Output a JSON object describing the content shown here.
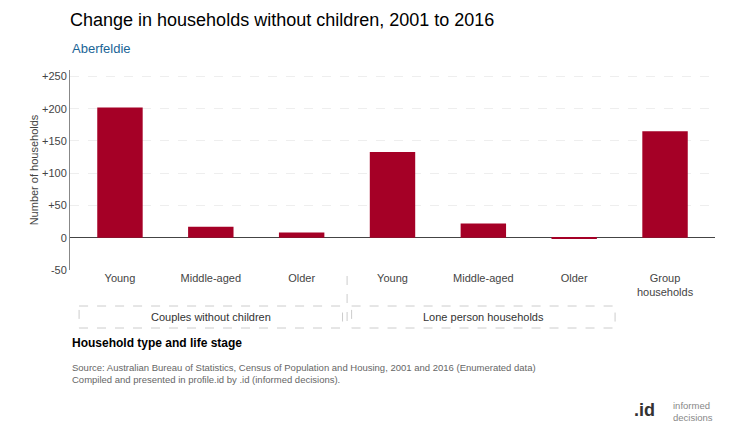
{
  "chart_data": {
    "type": "bar",
    "title": "Change in households without children, 2001 to 2016",
    "subtitle": "Aberfeldie",
    "subtitle_color": "#1a6496",
    "categories": [
      "Young",
      "Middle-aged",
      "Older",
      "Young",
      "Middle-aged",
      "Older",
      "Group\nhouseholds"
    ],
    "values": [
      202,
      17,
      8,
      133,
      22,
      -2,
      165
    ],
    "color": "#A50026",
    "ylim": [
      -50,
      260
    ],
    "yticks": [
      -50,
      0,
      {
        "value": 50,
        "label": "+50"
      },
      {
        "value": 100,
        "label": "+100"
      },
      {
        "value": 150,
        "label": "+150"
      },
      {
        "value": 200,
        "label": "+200"
      },
      {
        "value": 250,
        "label": "+250"
      }
    ],
    "ylabel": "Number of households",
    "xlabel": "Household type and life stage",
    "group_labels": [
      "Couples without children",
      "Lone person households"
    ],
    "source": "Source: Australian Bureau of Statistics, Census of Population and Housing, 2001 and 2016 (Enumerated data)\nCompiled and presented in profile.id by .id (informed decisions).",
    "annotations": [
      ".id",
      "informed\ndecisions"
    ],
    "grid": true
  }
}
